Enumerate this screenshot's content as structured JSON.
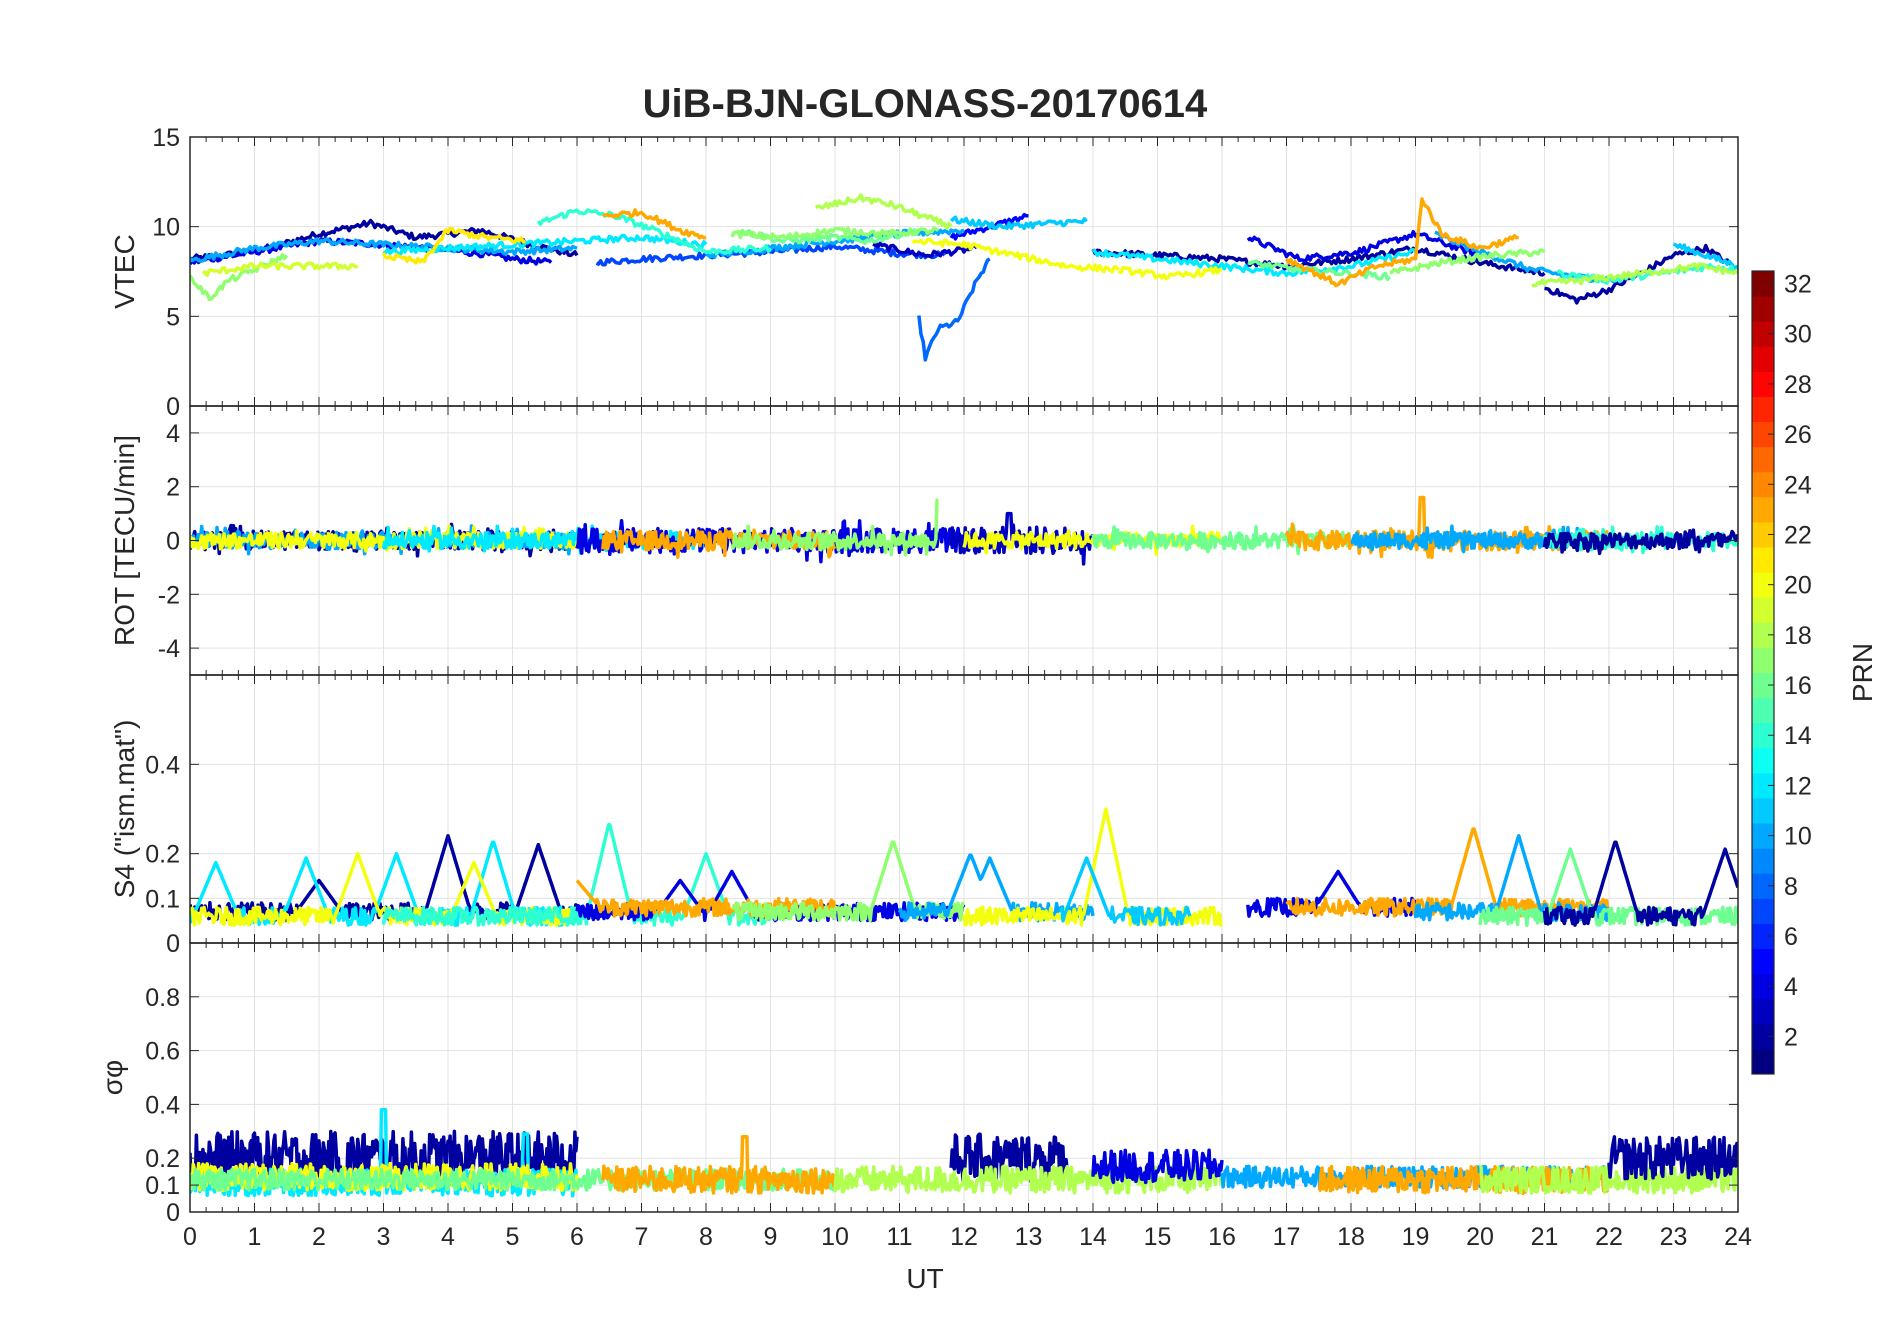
{
  "title": "UiB-BJN-GLONASS-20170614",
  "xlabel": "UT",
  "colorbar": {
    "label": "PRN",
    "range": [
      1,
      32
    ],
    "ticks": [
      "2",
      "4",
      "6",
      "8",
      "10",
      "12",
      "14",
      "16",
      "18",
      "20",
      "22",
      "24",
      "26",
      "28",
      "30",
      "32"
    ],
    "colormap": "jet"
  },
  "chart_data": [
    {
      "type": "line",
      "name": "vtec",
      "ylabel": "VTEC",
      "xlim": [
        0,
        24
      ],
      "ylim": [
        0,
        15
      ],
      "yticks": [
        "0",
        "5",
        "10",
        "15"
      ],
      "xticks": [
        "0",
        "1",
        "2",
        "3",
        "4",
        "5",
        "6",
        "7",
        "8",
        "9",
        "10",
        "11",
        "12",
        "13",
        "14",
        "15",
        "16",
        "17",
        "18",
        "19",
        "20",
        "21",
        "22",
        "23",
        "24"
      ],
      "grid": true,
      "series": [
        {
          "prn": 2,
          "x": [
            0,
            1,
            2,
            2.8,
            3.5,
            4.5,
            5.3,
            6.0
          ],
          "y": [
            8.2,
            8.6,
            9.6,
            10.2,
            9.4,
            9.8,
            9.0,
            8.4
          ]
        },
        {
          "prn": 4,
          "x": [
            0,
            1,
            2,
            3,
            3.7,
            4.5,
            5.0,
            5.6
          ],
          "y": [
            8.0,
            8.6,
            9.2,
            9.0,
            8.8,
            8.5,
            8.2,
            8.0
          ]
        },
        {
          "prn": 7,
          "x": [
            6.3,
            7,
            8,
            9,
            10,
            11,
            11.7
          ],
          "y": [
            8.0,
            8.2,
            8.4,
            8.6,
            8.9,
            8.5,
            8.4
          ]
        },
        {
          "prn": 5,
          "x": [
            11.8,
            12.4,
            13.0
          ],
          "y": [
            9.4,
            10.0,
            10.6
          ]
        },
        {
          "prn": 3,
          "x": [
            10.6,
            11.4,
            12.2
          ],
          "y": [
            9.0,
            8.4,
            8.8
          ]
        },
        {
          "prn": 8,
          "x": [
            11.3,
            11.4,
            11.6,
            11.9,
            12.2,
            12.4
          ],
          "y": [
            4.9,
            2.7,
            4.3,
            4.7,
            7.0,
            8.2
          ]
        },
        {
          "prn": 2,
          "x": [
            14,
            15,
            16,
            17,
            18,
            19,
            20,
            21
          ],
          "y": [
            8.6,
            8.4,
            8.2,
            7.8,
            8.2,
            8.8,
            8.0,
            7.4
          ]
        },
        {
          "prn": 4,
          "x": [
            16.4,
            17.2,
            18.1,
            19.0,
            20.0
          ],
          "y": [
            9.4,
            8.2,
            8.6,
            9.6,
            8.4
          ]
        },
        {
          "prn": 2,
          "x": [
            21,
            21.5,
            22,
            22.6,
            23,
            23.5,
            24
          ],
          "y": [
            6.6,
            5.9,
            6.5,
            7.6,
            8.4,
            8.8,
            7.6
          ]
        },
        {
          "prn": 10,
          "x": [
            0,
            1,
            2,
            3,
            4,
            5,
            6
          ],
          "y": [
            8.1,
            8.8,
            9.2,
            9.0,
            8.8,
            8.6,
            8.8
          ]
        },
        {
          "prn": 10,
          "x": [
            8,
            9,
            10,
            11,
            12
          ],
          "y": [
            8.4,
            8.8,
            9.2,
            9.6,
            9.8
          ]
        },
        {
          "prn": 11,
          "x": [
            11.8,
            12.6,
            13.4,
            13.9
          ],
          "y": [
            10.4,
            10.0,
            10.2,
            10.3
          ]
        },
        {
          "prn": 10,
          "x": [
            19.3,
            20,
            20.8,
            21.5,
            22.2
          ],
          "y": [
            9.6,
            8.6,
            7.6,
            7.2,
            7.0
          ]
        },
        {
          "prn": 11,
          "x": [
            23,
            23.5,
            24
          ],
          "y": [
            9.0,
            8.4,
            7.8
          ]
        },
        {
          "prn": 12,
          "x": [
            3,
            4,
            5,
            6,
            7,
            8
          ],
          "y": [
            8.6,
            8.8,
            9.0,
            9.2,
            9.4,
            9.0
          ]
        },
        {
          "prn": 12,
          "x": [
            14,
            15,
            16,
            17,
            18,
            19
          ],
          "y": [
            8.6,
            8.2,
            7.8,
            7.4,
            7.8,
            8.6
          ]
        },
        {
          "prn": 14,
          "x": [
            5.4,
            6.0,
            6.6,
            7.2,
            8.0,
            9.0
          ],
          "y": [
            10.2,
            10.9,
            10.6,
            9.8,
            8.6,
            8.8
          ]
        },
        {
          "prn": 14,
          "x": [
            21.2,
            22,
            22.8,
            23.6,
            24
          ],
          "y": [
            7.4,
            7.0,
            7.4,
            7.8,
            7.6
          ]
        },
        {
          "prn": 16,
          "x": [
            8.5,
            9.2,
            10,
            10.5,
            11.3
          ],
          "y": [
            9.8,
            9.2,
            9.4,
            9.2,
            9.8
          ]
        },
        {
          "prn": 16,
          "x": [
            16.4,
            17.2,
            18,
            18.6
          ],
          "y": [
            8.0,
            7.6,
            7.4,
            7.2
          ]
        },
        {
          "prn": 17,
          "x": [
            0,
            0.3,
            0.6,
            1.0,
            1.5
          ],
          "y": [
            7.2,
            6.0,
            7.0,
            7.6,
            8.4
          ]
        },
        {
          "prn": 17,
          "x": [
            8.4,
            9.2,
            10,
            10.8,
            11.6
          ],
          "y": [
            9.6,
            9.4,
            9.8,
            9.6,
            9.8
          ]
        },
        {
          "prn": 17,
          "x": [
            18.6,
            19.4,
            20.2,
            21.0
          ],
          "y": [
            7.4,
            8.0,
            8.4,
            8.6
          ]
        },
        {
          "prn": 18,
          "x": [
            9.7,
            10.4,
            10.9,
            11.8
          ],
          "y": [
            11.0,
            11.6,
            11.2,
            10.0
          ]
        },
        {
          "prn": 18,
          "x": [
            20.8,
            21.6,
            22.5,
            23.4,
            24
          ],
          "y": [
            6.8,
            7.0,
            7.4,
            7.8,
            7.4
          ]
        },
        {
          "prn": 19,
          "x": [
            0.2,
            1.0,
            1.8,
            2.6
          ],
          "y": [
            7.4,
            7.8,
            7.8,
            7.8
          ]
        },
        {
          "prn": 20,
          "x": [
            11.2,
            12.0,
            12.8,
            13.6,
            14.4
          ],
          "y": [
            9.2,
            9.0,
            8.4,
            7.8,
            7.6
          ]
        },
        {
          "prn": 20,
          "x": [
            14.4,
            15.2,
            16.0
          ],
          "y": [
            7.6,
            7.2,
            7.6
          ]
        },
        {
          "prn": 21,
          "x": [
            3.0,
            3.6,
            4.0,
            4.6,
            5.2
          ],
          "y": [
            8.4,
            8.0,
            9.8,
            9.4,
            9.2
          ]
        },
        {
          "prn": 23,
          "x": [
            6.4,
            7.0,
            7.6,
            8.0
          ],
          "y": [
            10.6,
            10.8,
            9.8,
            9.4
          ]
        },
        {
          "prn": 23,
          "x": [
            17.0,
            17.8,
            18.4,
            19.0,
            19.1,
            19.4,
            20.0,
            20.6
          ],
          "y": [
            8.2,
            6.8,
            7.8,
            8.2,
            11.6,
            9.6,
            8.8,
            9.4
          ]
        }
      ]
    },
    {
      "type": "line",
      "name": "rot",
      "ylabel": "ROT [TECU/min]",
      "xlim": [
        0,
        24
      ],
      "ylim": [
        -5,
        5
      ],
      "yticks": [
        "-4",
        "-2",
        "0",
        "2",
        "4"
      ],
      "grid": true,
      "series_note": "noisy around 0, amplitude about 0.4 TECU/min",
      "series": [
        {
          "prn": 2,
          "x": [
            0,
            6
          ],
          "amp": 0.35
        },
        {
          "prn": 10,
          "x": [
            0,
            6
          ],
          "amp": 0.3
        },
        {
          "prn": 20,
          "x": [
            0,
            6
          ],
          "amp": 0.3
        },
        {
          "prn": 12,
          "x": [
            3,
            8
          ],
          "amp": 0.3
        },
        {
          "prn": 4,
          "x": [
            6,
            12
          ],
          "amp": 0.45
        },
        {
          "prn": 23,
          "x": [
            6.4,
            10
          ],
          "amp": 0.35
        },
        {
          "prn": 17,
          "x": [
            8.4,
            11.6
          ],
          "amp": 0.3,
          "spike": [
            11.6,
            1.5
          ]
        },
        {
          "prn": 3,
          "x": [
            11.8,
            14
          ],
          "amp": 0.5,
          "spike": [
            12.7,
            1.0
          ]
        },
        {
          "prn": 20,
          "x": [
            12,
            16
          ],
          "amp": 0.3
        },
        {
          "prn": 16,
          "x": [
            14,
            18
          ],
          "amp": 0.3
        },
        {
          "prn": 23,
          "x": [
            17,
            22
          ],
          "amp": 0.35,
          "spike": [
            19.1,
            1.6
          ]
        },
        {
          "prn": 10,
          "x": [
            18,
            22
          ],
          "amp": 0.3
        },
        {
          "prn": 14,
          "x": [
            21,
            24
          ],
          "amp": 0.3
        },
        {
          "prn": 2,
          "x": [
            21,
            24
          ],
          "amp": 0.3
        }
      ]
    },
    {
      "type": "line",
      "name": "s4",
      "ylabel": "S4 (\"ism.mat\")",
      "xlim": [
        0,
        24
      ],
      "ylim": [
        0,
        0.6
      ],
      "yticks": [
        "0",
        "0.1",
        "0.2",
        "0.4"
      ],
      "grid": true,
      "series": [
        {
          "prn": 2,
          "x": [
            0,
            6
          ],
          "base": 0.07,
          "spikes": [
            [
              2.0,
              0.14
            ],
            [
              4.0,
              0.24
            ],
            [
              5.4,
              0.22
            ]
          ]
        },
        {
          "prn": 12,
          "x": [
            0,
            6
          ],
          "base": 0.06,
          "spikes": [
            [
              0.4,
              0.18
            ],
            [
              1.8,
              0.19
            ],
            [
              3.2,
              0.2
            ],
            [
              4.7,
              0.23
            ]
          ]
        },
        {
          "prn": 20,
          "x": [
            0,
            6
          ],
          "base": 0.06,
          "spikes": [
            [
              2.6,
              0.2
            ],
            [
              4.4,
              0.18
            ]
          ]
        },
        {
          "prn": 14,
          "x": [
            3,
            9
          ],
          "base": 0.06,
          "spikes": [
            [
              6.5,
              0.27
            ],
            [
              8.0,
              0.2
            ]
          ]
        },
        {
          "prn": 4,
          "x": [
            6,
            12
          ],
          "base": 0.07,
          "spikes": [
            [
              7.6,
              0.14
            ],
            [
              8.4,
              0.16
            ]
          ]
        },
        {
          "prn": 23,
          "x": [
            6,
            10
          ],
          "base": 0.08,
          "spikes": [
            [
              6.0,
              0.14
            ]
          ]
        },
        {
          "prn": 17,
          "x": [
            8.4,
            12
          ],
          "base": 0.07,
          "spikes": [
            [
              10.9,
              0.23
            ]
          ]
        },
        {
          "prn": 10,
          "x": [
            11,
            14
          ],
          "base": 0.07,
          "spikes": [
            [
              12.1,
              0.2
            ],
            [
              12.4,
              0.19
            ]
          ]
        },
        {
          "prn": 20,
          "x": [
            12,
            16
          ],
          "base": 0.06,
          "spikes": [
            [
              14.2,
              0.3
            ]
          ]
        },
        {
          "prn": 11,
          "x": [
            13.5,
            15.5
          ],
          "base": 0.06,
          "spikes": [
            [
              13.9,
              0.19
            ]
          ]
        },
        {
          "prn": 4,
          "x": [
            16.4,
            19
          ],
          "base": 0.08,
          "spikes": [
            [
              17.8,
              0.16
            ]
          ]
        },
        {
          "prn": 23,
          "x": [
            17,
            22
          ],
          "base": 0.08,
          "spikes": [
            [
              19.9,
              0.26
            ]
          ]
        },
        {
          "prn": 10,
          "x": [
            19,
            22
          ],
          "base": 0.07,
          "spikes": [
            [
              20.6,
              0.24
            ]
          ]
        },
        {
          "prn": 16,
          "x": [
            20,
            24
          ],
          "base": 0.06,
          "spikes": [
            [
              21.4,
              0.21
            ]
          ]
        },
        {
          "prn": 2,
          "x": [
            21,
            24
          ],
          "base": 0.06,
          "spikes": [
            [
              22.1,
              0.23
            ],
            [
              23.8,
              0.21
            ]
          ]
        }
      ]
    },
    {
      "type": "line",
      "name": "sigma_phi",
      "ylabel": "σφ",
      "xlim": [
        0,
        24
      ],
      "ylim": [
        0,
        1
      ],
      "yticks": [
        "0",
        "0.1",
        "0.2",
        "0.4",
        "0.6",
        "0.8"
      ],
      "grid": true,
      "series": [
        {
          "prn": 2,
          "x": [
            0,
            6
          ],
          "base": 0.2,
          "amp": 0.1
        },
        {
          "prn": 12,
          "x": [
            0,
            6
          ],
          "base": 0.11,
          "amp": 0.05,
          "spikes": [
            [
              3.0,
              0.38
            ],
            [
              5.2,
              0.29
            ]
          ]
        },
        {
          "prn": 20,
          "x": [
            0,
            6
          ],
          "base": 0.13,
          "amp": 0.05
        },
        {
          "prn": 16,
          "x": [
            0,
            10
          ],
          "base": 0.12,
          "amp": 0.04
        },
        {
          "prn": 23,
          "x": [
            6.4,
            10
          ],
          "base": 0.12,
          "amp": 0.05,
          "spikes": [
            [
              8.6,
              0.28
            ]
          ]
        },
        {
          "prn": 2,
          "x": [
            11.8,
            13.6
          ],
          "base": 0.2,
          "amp": 0.09
        },
        {
          "prn": 18,
          "x": [
            10,
            16
          ],
          "base": 0.12,
          "amp": 0.05
        },
        {
          "prn": 4,
          "x": [
            14,
            16
          ],
          "base": 0.17,
          "amp": 0.06
        },
        {
          "prn": 10,
          "x": [
            16,
            22
          ],
          "base": 0.13,
          "amp": 0.04
        },
        {
          "prn": 23,
          "x": [
            17.5,
            22
          ],
          "base": 0.12,
          "amp": 0.05
        },
        {
          "prn": 18,
          "x": [
            20,
            24
          ],
          "base": 0.12,
          "amp": 0.05
        },
        {
          "prn": 2,
          "x": [
            22,
            24
          ],
          "base": 0.2,
          "amp": 0.08
        }
      ]
    }
  ]
}
